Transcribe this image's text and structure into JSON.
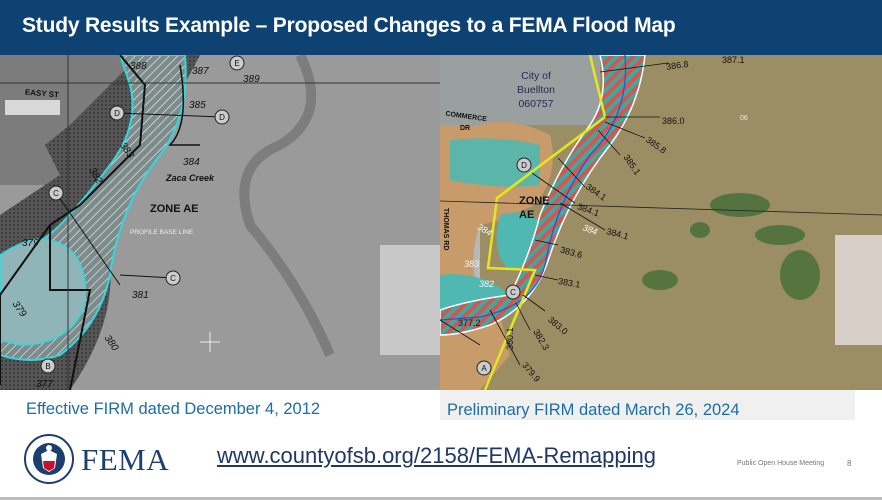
{
  "header": {
    "title": "Study Results Example – Proposed Changes to a FEMA Flood Map"
  },
  "left_map": {
    "labels": {
      "street": "EASY ST",
      "creek": "Zaca Creek",
      "zone": "ZONE AE",
      "baseline": "PROFILE BASE LINE",
      "bfe": [
        "388",
        "387",
        "389",
        "385",
        "383",
        "382",
        "384",
        "379",
        "381",
        "379",
        "380",
        "377"
      ],
      "sections": [
        "E",
        "D",
        "D",
        "C",
        "C",
        "B"
      ]
    }
  },
  "right_map": {
    "labels": {
      "city": [
        "City of",
        "Buellton",
        "060757"
      ],
      "street1": [
        "COMMERCE",
        "DR"
      ],
      "street2": "THOMAS RD",
      "zone": [
        "ZONE",
        "AE"
      ],
      "bfe": [
        "386.8",
        "387.1",
        "386.0",
        "385.8",
        "385.1",
        "384.1",
        "384.1",
        "384",
        "384.1",
        "383.6",
        "384",
        "383",
        "382",
        "383.1",
        "383.0",
        "382.3",
        "380.1",
        "377.2",
        "379.9",
        "06"
      ],
      "sections": [
        "D",
        "C",
        "A"
      ]
    }
  },
  "captions": {
    "left": "Effective FIRM dated December 4, 2012",
    "right": "Preliminary FIRM dated March 26, 2024"
  },
  "footer": {
    "logo_text": "FEMA",
    "url": "www.countyofsb.org/2158/FEMA-Remapping",
    "meeting": "Public Open House Meeting",
    "page_number": "8"
  },
  "colors": {
    "header": "#0d4273",
    "caption": "#1b6ea5",
    "flood_cyan": "#2fd9e0",
    "flood_teal": "#3fb5ad",
    "floodway_red": "#d2574f",
    "boundary_yellow": "#e6e61e"
  }
}
